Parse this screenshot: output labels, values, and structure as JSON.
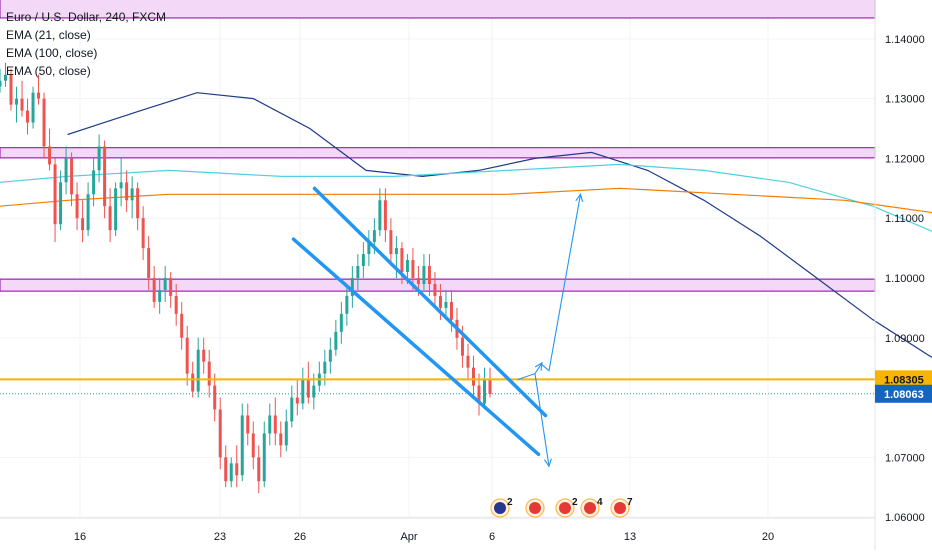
{
  "legend": {
    "title": "Euro / U.S. Dollar, 240, FXCM",
    "ema21": "EMA (21, close)",
    "ema100": "EMA (100, close)",
    "ema50": "EMA (50, close)"
  },
  "colors": {
    "up": "#26a69a",
    "down": "#ef5350",
    "ema21": "#1e3a8a",
    "ema50": "#4dd0e1",
    "ema100": "#f57c00",
    "zone_fill": "#f3d9f7",
    "zone_edge": "#9c27b0",
    "support": "#f7b500",
    "channel": "#2196f3",
    "current_badge": "#1565c0",
    "support_badge": "#f7b500",
    "grid": "#f0f3fa",
    "axis_text": "#131722"
  },
  "chart_data": {
    "type": "candlestick",
    "ylim": [
      1.0545,
      1.1465
    ],
    "y_ticks": [
      "1.14000",
      "1.13000",
      "1.12000",
      "1.11000",
      "1.10000",
      "1.09000",
      "1.07000",
      "1.06000"
    ],
    "x_ticks": [
      "16",
      "23",
      "26",
      "Apr",
      "6",
      "13",
      "20"
    ],
    "current_price": "1.08063",
    "support_price": "1.08305",
    "zones": [
      {
        "low": 1.1435,
        "high": 1.1485
      },
      {
        "low": 1.1201,
        "high": 1.1218
      },
      {
        "low": 1.0978,
        "high": 1.0998
      }
    ],
    "channel": {
      "upper": {
        "from": [
          "Mar 27 12:00",
          1.115
        ],
        "to": [
          "Apr 7 12:00",
          1.077
        ]
      },
      "lower": {
        "from": [
          "Mar 26 12:00",
          1.1065
        ],
        "to": [
          "Apr 7 04:00",
          1.0705
        ]
      }
    },
    "projections": [
      {
        "path": [
          [
            "Apr 6 04:00",
            1.083
          ],
          [
            "Apr 7 00:00",
            1.084
          ],
          [
            "Apr 7 08:00",
            1.0858
          ]
        ]
      },
      {
        "path": [
          [
            "Apr 7 08:00",
            1.0855
          ],
          [
            "Apr 7 16:00",
            1.0845
          ],
          [
            "Apr 9 04:00",
            1.114
          ]
        ]
      },
      {
        "path": [
          [
            "Apr 7 00:00",
            1.084
          ],
          [
            "Apr 7 16:00",
            1.0685
          ]
        ]
      }
    ],
    "events": [
      {
        "label": "2",
        "type": "calendar"
      },
      {
        "label": "",
        "type": "us-flag"
      },
      {
        "label": "2",
        "type": "us-flag"
      },
      {
        "label": "4",
        "type": "us-flag"
      },
      {
        "label": "7",
        "type": "us-flag"
      }
    ],
    "series": [
      {
        "name": "EMA (21, close)",
        "points": [
          [
            1.124,
            12
          ],
          [
            1.128,
            25
          ],
          [
            1.131,
            35
          ],
          [
            1.13,
            45
          ],
          [
            1.125,
            55
          ],
          [
            1.118,
            65
          ],
          [
            1.117,
            75
          ],
          [
            1.118,
            85
          ],
          [
            1.12,
            95
          ],
          [
            1.121,
            105
          ],
          [
            1.118,
            115
          ],
          [
            1.113,
            125
          ],
          [
            1.107,
            135
          ],
          [
            1.1,
            145
          ],
          [
            1.093,
            155
          ],
          [
            1.087,
            165
          ],
          [
            1.082,
            175
          ],
          [
            1.077,
            185
          ],
          [
            1.074,
            195
          ],
          [
            1.072,
            205
          ],
          [
            1.072,
            215
          ],
          [
            1.074,
            225
          ],
          [
            1.077,
            235
          ],
          [
            1.079,
            245
          ],
          [
            1.08,
            255
          ],
          [
            1.08,
            265
          ],
          [
            1.081,
            275
          ],
          [
            1.083,
            285
          ],
          [
            1.087,
            295
          ],
          [
            1.091,
            305
          ],
          [
            1.095,
            315
          ],
          [
            1.099,
            325
          ],
          [
            1.1,
            335
          ],
          [
            1.101,
            345
          ],
          [
            1.102,
            355
          ],
          [
            1.102,
            365
          ],
          [
            1.101,
            375
          ],
          [
            1.1,
            385
          ],
          [
            1.098,
            395
          ],
          [
            1.097,
            405
          ],
          [
            1.097,
            415
          ],
          [
            1.097,
            425
          ],
          [
            1.097,
            435
          ],
          [
            1.096,
            445
          ],
          [
            1.094,
            455
          ],
          [
            1.091,
            465
          ],
          [
            1.088,
            475
          ],
          [
            1.086,
            485
          ]
        ]
      },
      {
        "name": "EMA (50, close)",
        "points": [
          [
            1.116,
            0
          ],
          [
            1.117,
            12
          ],
          [
            1.118,
            30
          ],
          [
            1.117,
            50
          ],
          [
            1.117,
            70
          ],
          [
            1.118,
            90
          ],
          [
            1.119,
            110
          ],
          [
            1.118,
            125
          ],
          [
            1.116,
            140
          ],
          [
            1.112,
            155
          ],
          [
            1.106,
            170
          ],
          [
            1.1,
            185
          ],
          [
            1.095,
            200
          ],
          [
            1.091,
            215
          ],
          [
            1.089,
            230
          ],
          [
            1.088,
            245
          ],
          [
            1.088,
            260
          ],
          [
            1.088,
            275
          ],
          [
            1.089,
            290
          ],
          [
            1.09,
            300
          ],
          [
            1.092,
            310
          ],
          [
            1.094,
            320
          ],
          [
            1.096,
            330
          ],
          [
            1.097,
            340
          ],
          [
            1.098,
            350
          ],
          [
            1.099,
            360
          ],
          [
            1.099,
            370
          ],
          [
            1.099,
            380
          ],
          [
            1.099,
            390
          ],
          [
            1.099,
            400
          ],
          [
            1.098,
            410
          ],
          [
            1.098,
            420
          ],
          [
            1.098,
            430
          ],
          [
            1.097,
            440
          ],
          [
            1.096,
            450
          ],
          [
            1.095,
            460
          ],
          [
            1.093,
            470
          ],
          [
            1.092,
            485
          ]
        ]
      },
      {
        "name": "EMA (100, close)",
        "points": [
          [
            1.112,
            0
          ],
          [
            1.113,
            12
          ],
          [
            1.114,
            30
          ],
          [
            1.114,
            50
          ],
          [
            1.114,
            70
          ],
          [
            1.114,
            90
          ],
          [
            1.115,
            110
          ],
          [
            1.114,
            130
          ],
          [
            1.113,
            150
          ],
          [
            1.111,
            165
          ],
          [
            1.109,
            180
          ],
          [
            1.107,
            195
          ],
          [
            1.105,
            210
          ],
          [
            1.103,
            225
          ],
          [
            1.101,
            240
          ],
          [
            1.1,
            255
          ],
          [
            1.098,
            270
          ],
          [
            1.097,
            285
          ],
          [
            1.096,
            300
          ],
          [
            1.096,
            315
          ],
          [
            1.096,
            330
          ],
          [
            1.096,
            345
          ],
          [
            1.097,
            360
          ],
          [
            1.097,
            375
          ],
          [
            1.098,
            390
          ],
          [
            1.098,
            405
          ],
          [
            1.098,
            420
          ],
          [
            1.097,
            435
          ],
          [
            1.097,
            445
          ],
          [
            1.096,
            455
          ],
          [
            1.095,
            465
          ],
          [
            1.094,
            475
          ],
          [
            1.093,
            485
          ]
        ]
      }
    ],
    "ohlc": [
      [
        1.132,
        1.135,
        1.131,
        1.133
      ],
      [
        1.133,
        1.136,
        1.132,
        1.134
      ],
      [
        1.134,
        1.135,
        1.128,
        1.129
      ],
      [
        1.129,
        1.132,
        1.126,
        1.13
      ],
      [
        1.13,
        1.133,
        1.127,
        1.128
      ],
      [
        1.128,
        1.13,
        1.124,
        1.126
      ],
      [
        1.126,
        1.132,
        1.125,
        1.131
      ],
      [
        1.131,
        1.134,
        1.129,
        1.13
      ],
      [
        1.13,
        1.131,
        1.12,
        1.122
      ],
      [
        1.122,
        1.125,
        1.118,
        1.119
      ],
      [
        1.119,
        1.12,
        1.106,
        1.109
      ],
      [
        1.109,
        1.118,
        1.108,
        1.116
      ],
      [
        1.116,
        1.122,
        1.114,
        1.12
      ],
      [
        1.12,
        1.121,
        1.112,
        1.114
      ],
      [
        1.114,
        1.116,
        1.108,
        1.11
      ],
      [
        1.11,
        1.113,
        1.106,
        1.108
      ],
      [
        1.108,
        1.116,
        1.107,
        1.114
      ],
      [
        1.114,
        1.12,
        1.112,
        1.118
      ],
      [
        1.118,
        1.124,
        1.116,
        1.122
      ],
      [
        1.122,
        1.123,
        1.11,
        1.112
      ],
      [
        1.112,
        1.115,
        1.106,
        1.108
      ],
      [
        1.108,
        1.116,
        1.107,
        1.115
      ],
      [
        1.115,
        1.12,
        1.112,
        1.116
      ],
      [
        1.116,
        1.118,
        1.111,
        1.113
      ],
      [
        1.113,
        1.117,
        1.11,
        1.115
      ],
      [
        1.115,
        1.116,
        1.108,
        1.11
      ],
      [
        1.11,
        1.112,
        1.103,
        1.105
      ],
      [
        1.105,
        1.107,
        1.098,
        1.1
      ],
      [
        1.1,
        1.102,
        1.095,
        1.096
      ],
      [
        1.096,
        1.1,
        1.094,
        1.098
      ],
      [
        1.098,
        1.102,
        1.096,
        1.1
      ],
      [
        1.1,
        1.101,
        1.095,
        1.097
      ],
      [
        1.097,
        1.099,
        1.092,
        1.094
      ],
      [
        1.094,
        1.096,
        1.088,
        1.09
      ],
      [
        1.09,
        1.092,
        1.082,
        1.084
      ],
      [
        1.084,
        1.086,
        1.08,
        1.081
      ],
      [
        1.081,
        1.09,
        1.08,
        1.088
      ],
      [
        1.088,
        1.09,
        1.084,
        1.086
      ],
      [
        1.086,
        1.088,
        1.08,
        1.082
      ],
      [
        1.082,
        1.084,
        1.076,
        1.078
      ],
      [
        1.078,
        1.08,
        1.068,
        1.07
      ],
      [
        1.07,
        1.072,
        1.065,
        1.066
      ],
      [
        1.066,
        1.07,
        1.065,
        1.069
      ],
      [
        1.069,
        1.072,
        1.065,
        1.067
      ],
      [
        1.067,
        1.079,
        1.066,
        1.077
      ],
      [
        1.077,
        1.079,
        1.072,
        1.074
      ],
      [
        1.074,
        1.076,
        1.068,
        1.07
      ],
      [
        1.07,
        1.072,
        1.064,
        1.066
      ],
      [
        1.066,
        1.076,
        1.065,
        1.074
      ],
      [
        1.074,
        1.079,
        1.072,
        1.077
      ],
      [
        1.077,
        1.08,
        1.072,
        1.074
      ],
      [
        1.074,
        1.076,
        1.07,
        1.072
      ],
      [
        1.072,
        1.078,
        1.071,
        1.076
      ],
      [
        1.076,
        1.082,
        1.075,
        1.08
      ],
      [
        1.08,
        1.083,
        1.077,
        1.079
      ],
      [
        1.079,
        1.085,
        1.078,
        1.083
      ],
      [
        1.083,
        1.086,
        1.079,
        1.08
      ],
      [
        1.08,
        1.084,
        1.078,
        1.082
      ],
      [
        1.082,
        1.086,
        1.081,
        1.084
      ],
      [
        1.084,
        1.088,
        1.082,
        1.086
      ],
      [
        1.086,
        1.09,
        1.084,
        1.088
      ],
      [
        1.088,
        1.093,
        1.087,
        1.091
      ],
      [
        1.091,
        1.096,
        1.089,
        1.094
      ],
      [
        1.094,
        1.099,
        1.092,
        1.097
      ],
      [
        1.097,
        1.102,
        1.095,
        1.1
      ],
      [
        1.1,
        1.104,
        1.098,
        1.102
      ],
      [
        1.102,
        1.106,
        1.1,
        1.104
      ],
      [
        1.104,
        1.108,
        1.102,
        1.106
      ],
      [
        1.106,
        1.11,
        1.104,
        1.108
      ],
      [
        1.108,
        1.115,
        1.107,
        1.113
      ],
      [
        1.113,
        1.115,
        1.106,
        1.108
      ],
      [
        1.108,
        1.11,
        1.102,
        1.104
      ],
      [
        1.104,
        1.107,
        1.1,
        1.105
      ],
      [
        1.105,
        1.106,
        1.099,
        1.101
      ],
      [
        1.101,
        1.104,
        1.099,
        1.103
      ],
      [
        1.103,
        1.105,
        1.098,
        1.1
      ],
      [
        1.1,
        1.102,
        1.097,
        1.099
      ],
      [
        1.099,
        1.104,
        1.098,
        1.102
      ],
      [
        1.102,
        1.104,
        1.097,
        1.099
      ],
      [
        1.099,
        1.101,
        1.095,
        1.097
      ],
      [
        1.097,
        1.099,
        1.093,
        1.095
      ],
      [
        1.095,
        1.098,
        1.093,
        1.096
      ],
      [
        1.096,
        1.098,
        1.091,
        1.093
      ],
      [
        1.093,
        1.095,
        1.088,
        1.09
      ],
      [
        1.09,
        1.092,
        1.085,
        1.087
      ],
      [
        1.087,
        1.089,
        1.083,
        1.085
      ],
      [
        1.085,
        1.087,
        1.08,
        1.082
      ],
      [
        1.082,
        1.084,
        1.077,
        1.079
      ],
      [
        1.079,
        1.085,
        1.078,
        1.083
      ],
      [
        1.083,
        1.085,
        1.08,
        1.0806
      ]
    ]
  }
}
